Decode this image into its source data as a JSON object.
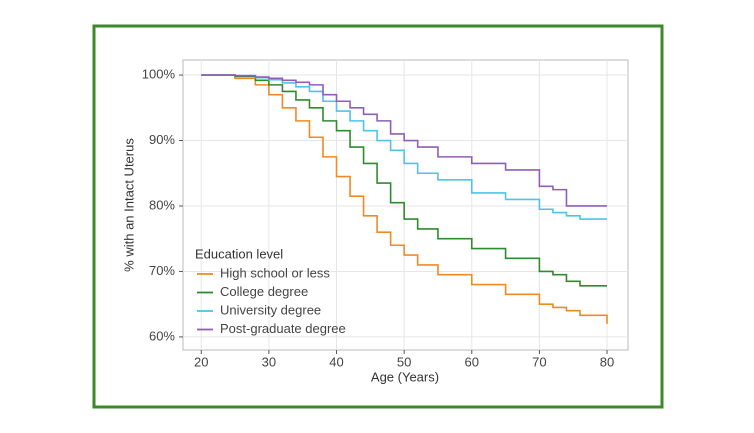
{
  "chart_data": {
    "type": "step-line",
    "xlabel": "Age (Years)",
    "ylabel": "% with an Intact Uterus",
    "legend_title": "Education level",
    "legend": "bottom-left",
    "grid": true,
    "xlim": [
      17.3,
      83.1
    ],
    "ylim": [
      58,
      102.3
    ],
    "xticks": [
      20,
      30,
      40,
      50,
      60,
      70,
      80
    ],
    "yticks": [
      {
        "value": 60,
        "label": "60%"
      },
      {
        "value": 70,
        "label": "70%"
      },
      {
        "value": 80,
        "label": "80%"
      },
      {
        "value": 90,
        "label": "90%"
      },
      {
        "value": 100,
        "label": "100%"
      }
    ],
    "x": [
      20,
      25,
      28,
      30,
      32,
      34,
      36,
      38,
      40,
      42,
      44,
      46,
      48,
      50,
      52,
      55,
      60,
      65,
      70,
      72,
      74,
      76,
      80
    ],
    "series": [
      {
        "name": "High school or less",
        "color": "#f08a24",
        "values": [
          100,
          99.5,
          98.5,
          97,
          95,
          93,
          90.5,
          87.5,
          84.5,
          81.5,
          78.5,
          76,
          74,
          72.5,
          71,
          69.5,
          68,
          66.5,
          65,
          64.5,
          64,
          63.3,
          62
        ]
      },
      {
        "name": "College degree",
        "color": "#2e8b2e",
        "values": [
          100,
          99.8,
          99.2,
          98.5,
          97.5,
          96.2,
          95,
          93,
          91.5,
          89,
          86.5,
          83.5,
          80.5,
          78,
          76.5,
          75,
          73.5,
          72,
          70,
          69.5,
          68.5,
          67.8,
          67.8
        ]
      },
      {
        "name": "University degree",
        "color": "#4fc3e8",
        "values": [
          100,
          99.9,
          99.6,
          99.3,
          98.8,
          98.2,
          97.5,
          96,
          94.5,
          93,
          91.5,
          90,
          88.5,
          86.5,
          85,
          84,
          82,
          81,
          79.5,
          79,
          78.5,
          78,
          78
        ]
      },
      {
        "name": "Post-graduate degree",
        "color": "#8e5fb5",
        "values": [
          100,
          99.9,
          99.7,
          99.5,
          99.2,
          98.9,
          98.5,
          97,
          96,
          95,
          94,
          93,
          91,
          90,
          89,
          87.5,
          86.5,
          85.5,
          83,
          82.5,
          80,
          80,
          80
        ]
      }
    ]
  }
}
